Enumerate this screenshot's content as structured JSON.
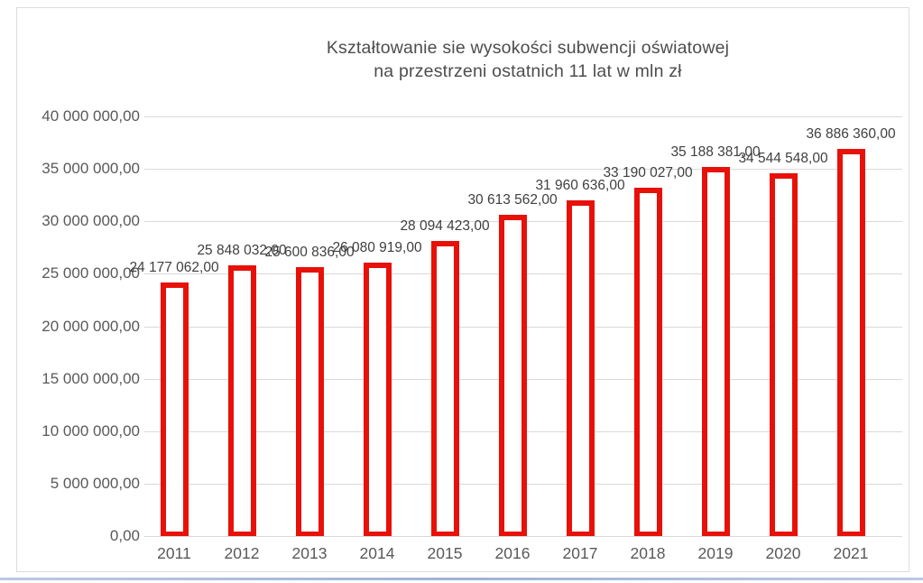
{
  "chart_data": {
    "type": "bar",
    "title_line1": "Kształtowanie sie wysokości subwencji oświatowej",
    "title_line2": "na przestrzeni ostatnich 11 lat w mln zł",
    "categories": [
      "2011",
      "2012",
      "2013",
      "2014",
      "2015",
      "2016",
      "2017",
      "2018",
      "2019",
      "2020",
      "2021"
    ],
    "values": [
      24177062,
      25848032,
      25600836,
      26080919,
      28094423,
      30613562,
      31960636,
      33190027,
      35188381,
      34544548,
      36886360
    ],
    "bar_labels": [
      "24 177 062,00",
      "25 848 032,00",
      "25 600 836,00",
      "26 080 919,00",
      "28 094 423,00",
      "30 613 562,00",
      "31 960 636,00",
      "33 190 027,00",
      "35 188 381,00",
      "34 544 548,00",
      "36 886 360,00"
    ],
    "y_ticks": [
      "40 000 000,00",
      "35 000 000,00",
      "30 000 000,00",
      "25 000 000,00",
      "20 000 000,00",
      "15 000 000,00",
      "10 000 000,00",
      "5 000 000,00",
      "0,00"
    ],
    "ylim": [
      0,
      40000000
    ],
    "xlabel": "",
    "ylabel": "",
    "grid": true,
    "legend": "none",
    "colors": {
      "bar_fill": "#ffffff",
      "bar_border": "#e81109",
      "gridline": "#d9d9d9",
      "title_text": "#4d4d4d",
      "axis_text": "#595959",
      "label_text": "#3f3f3f",
      "frame_border": "#dcdcdc",
      "bottom_rule": "#a9bdd9"
    }
  }
}
